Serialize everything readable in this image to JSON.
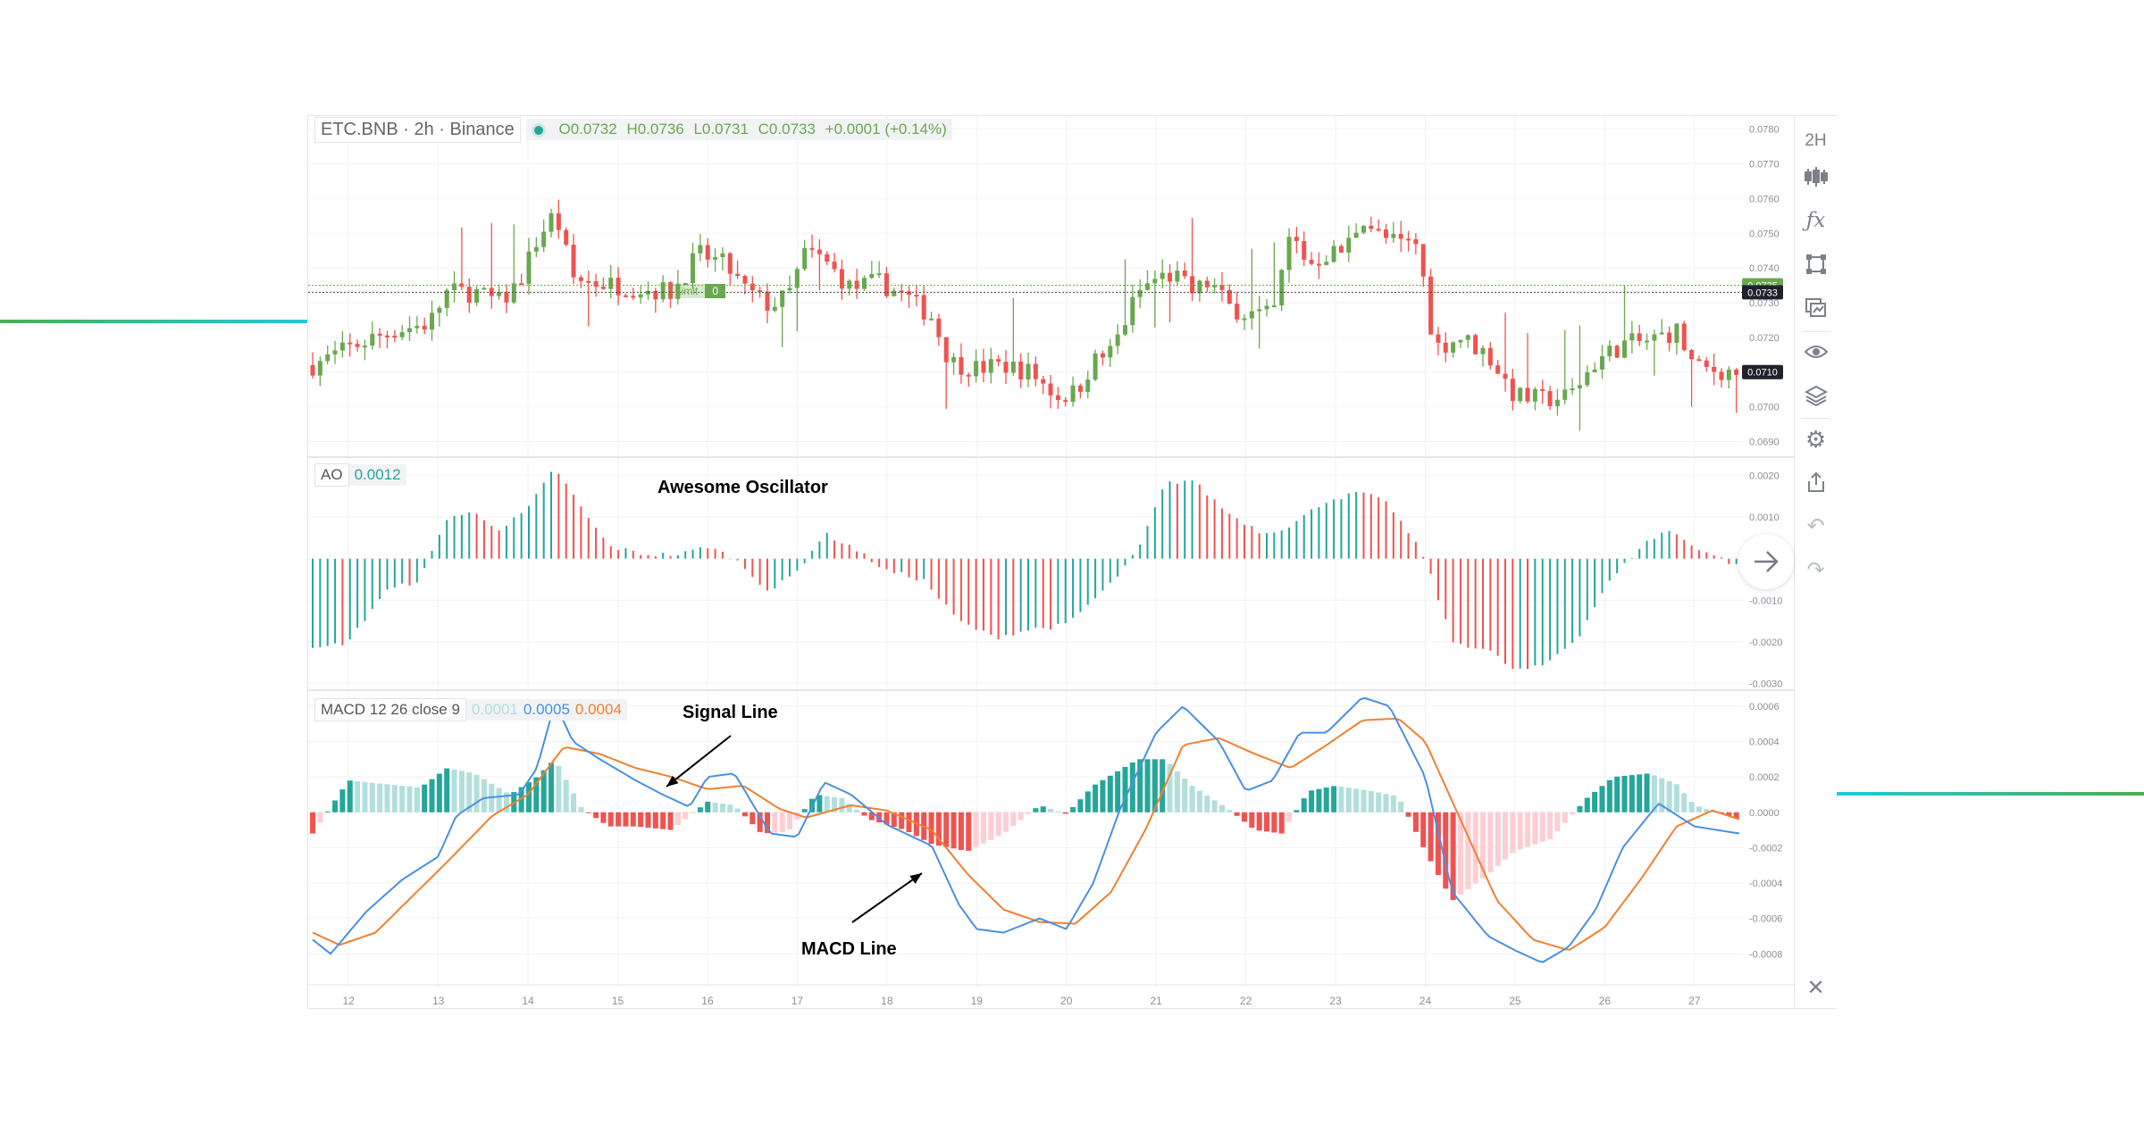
{
  "colors": {
    "up": "#6aa84f",
    "down": "#ef5350",
    "ao_up": "#26a69a",
    "macd_line": "#4a90e2",
    "signal_line": "#f08030",
    "hist_strong_up": "#26a69a",
    "hist_weak_up": "#b2dfdb",
    "hist_strong_down": "#ef5350",
    "hist_weak_down": "#ffcdd2",
    "deco": "#2dbfd0"
  },
  "header": {
    "symbol": "ETC.BNB · 2h · Binance",
    "open": "O0.0732",
    "high": "H0.0736",
    "low": "L0.0731",
    "close": "C0.0733",
    "change": "+0.0001 (+0.14%)"
  },
  "order_tag": {
    "label": "Limit",
    "qty": "0"
  },
  "ao_legend": {
    "name": "AO",
    "value": "0.0012"
  },
  "macd_legend": {
    "name": "MACD 12 26 close 9",
    "hist": "0.0001",
    "macd": "0.0005",
    "signal": "0.0004"
  },
  "annotations": {
    "ao_title": "Awesome Oscillator",
    "signal": "Signal Line",
    "macd": "MACD Line"
  },
  "price_badges": [
    "0.0735",
    "0.0733",
    "0.0710"
  ],
  "toolbar": [
    {
      "name": "interval-button",
      "label": "2H"
    },
    {
      "name": "candles-icon",
      "label": "candles"
    },
    {
      "name": "indicators-icon",
      "label": "fx"
    },
    {
      "name": "drawing-icon",
      "label": "draw"
    },
    {
      "name": "compare-icon",
      "label": "compare"
    },
    {
      "name": "eye-icon",
      "label": "hide"
    },
    {
      "name": "layers-icon",
      "label": "layers"
    },
    {
      "name": "settings-icon",
      "label": "settings"
    },
    {
      "name": "share-icon",
      "label": "share"
    },
    {
      "name": "undo-icon",
      "label": "undo"
    },
    {
      "name": "redo-icon",
      "label": "redo"
    },
    {
      "name": "close-icon",
      "label": "close"
    }
  ],
  "chart_data": [
    {
      "type": "candlestick",
      "title": "ETC.BNB · 2h · Binance",
      "y_ticks": [
        "0.0780",
        "0.0770",
        "0.0760",
        "0.0750",
        "0.0740",
        "0.0730",
        "0.0720",
        "0.0710",
        "0.0700",
        "0.0690"
      ],
      "ylim": [
        0.0686,
        0.0783
      ],
      "x_ticks": [
        "12",
        "13",
        "14",
        "15",
        "16",
        "17",
        "18",
        "19",
        "20",
        "21",
        "22",
        "23",
        "24",
        "25",
        "26",
        "27"
      ],
      "close_anchors": [
        [
          11.6,
          0.0712
        ],
        [
          12.1,
          0.0718
        ],
        [
          12.5,
          0.0722
        ],
        [
          12.9,
          0.0724
        ],
        [
          13.1,
          0.0733
        ],
        [
          13.4,
          0.0733
        ],
        [
          13.7,
          0.073
        ],
        [
          13.9,
          0.0736
        ],
        [
          14.1,
          0.0748
        ],
        [
          14.3,
          0.0756
        ],
        [
          14.5,
          0.0737
        ],
        [
          14.7,
          0.0736
        ],
        [
          15.0,
          0.0735
        ],
        [
          15.3,
          0.0734
        ],
        [
          15.6,
          0.0733
        ],
        [
          15.9,
          0.0744
        ],
        [
          16.2,
          0.0741
        ],
        [
          16.4,
          0.0734
        ],
        [
          16.7,
          0.0729
        ],
        [
          16.9,
          0.0732
        ],
        [
          17.1,
          0.0745
        ],
        [
          17.3,
          0.0742
        ],
        [
          17.6,
          0.0734
        ],
        [
          17.9,
          0.0736
        ],
        [
          18.2,
          0.0732
        ],
        [
          18.5,
          0.0726
        ],
        [
          18.7,
          0.0713
        ],
        [
          19.0,
          0.0711
        ],
        [
          19.3,
          0.0712
        ],
        [
          19.6,
          0.071
        ],
        [
          19.9,
          0.0703
        ],
        [
          20.1,
          0.0704
        ],
        [
          20.3,
          0.0713
        ],
        [
          20.5,
          0.0716
        ],
        [
          20.8,
          0.0733
        ],
        [
          21.0,
          0.0737
        ],
        [
          21.2,
          0.0738
        ],
        [
          21.4,
          0.0733
        ],
        [
          21.6,
          0.0736
        ],
        [
          21.8,
          0.0729
        ],
        [
          22.0,
          0.0727
        ],
        [
          22.3,
          0.0726
        ],
        [
          22.5,
          0.075
        ],
        [
          22.7,
          0.0741
        ],
        [
          22.9,
          0.0744
        ],
        [
          23.1,
          0.0745
        ],
        [
          23.3,
          0.0755
        ],
        [
          23.5,
          0.0749
        ],
        [
          23.7,
          0.0747
        ],
        [
          23.9,
          0.0747
        ],
        [
          24.0,
          0.0734
        ],
        [
          24.1,
          0.0717
        ],
        [
          24.4,
          0.072
        ],
        [
          24.7,
          0.0715
        ],
        [
          25.0,
          0.0703
        ],
        [
          25.3,
          0.0702
        ],
        [
          25.6,
          0.0703
        ],
        [
          25.9,
          0.0713
        ],
        [
          26.2,
          0.0718
        ],
        [
          26.5,
          0.0719
        ],
        [
          26.8,
          0.0722
        ],
        [
          27.0,
          0.0711
        ],
        [
          27.5,
          0.071
        ]
      ]
    },
    {
      "type": "bar",
      "title": "Awesome Oscillator",
      "y_ticks": [
        "0.0020",
        "0.0010",
        "-0.0010",
        "-0.0020",
        "-0.0030"
      ],
      "ylim": [
        -0.0031,
        0.0024
      ],
      "anchors": [
        [
          11.6,
          -0.0022
        ],
        [
          12.0,
          -0.002
        ],
        [
          12.4,
          -0.0008
        ],
        [
          12.8,
          -0.0005
        ],
        [
          13.1,
          0.001
        ],
        [
          13.4,
          0.0011
        ],
        [
          13.7,
          0.0007
        ],
        [
          14.0,
          0.0012
        ],
        [
          14.3,
          0.0022
        ],
        [
          14.6,
          0.0012
        ],
        [
          14.9,
          0.0003
        ],
        [
          15.3,
          0.0001
        ],
        [
          15.7,
          0.0001
        ],
        [
          16.0,
          0.0003
        ],
        [
          16.3,
          0.0
        ],
        [
          16.7,
          -0.0008
        ],
        [
          17.0,
          -0.0003
        ],
        [
          17.3,
          0.0006
        ],
        [
          17.6,
          0.0003
        ],
        [
          18.0,
          -0.0003
        ],
        [
          18.4,
          -0.0005
        ],
        [
          18.8,
          -0.0015
        ],
        [
          19.2,
          -0.0019
        ],
        [
          19.6,
          -0.0017
        ],
        [
          20.0,
          -0.0016
        ],
        [
          20.5,
          -0.0006
        ],
        [
          20.8,
          0.0002
        ],
        [
          21.1,
          0.0018
        ],
        [
          21.4,
          0.0019
        ],
        [
          21.8,
          0.0011
        ],
        [
          22.2,
          0.0006
        ],
        [
          22.5,
          0.0008
        ],
        [
          22.9,
          0.0014
        ],
        [
          23.3,
          0.0016
        ],
        [
          23.6,
          0.0013
        ],
        [
          24.0,
          0.0
        ],
        [
          24.3,
          -0.002
        ],
        [
          24.7,
          -0.0022
        ],
        [
          25.0,
          -0.0027
        ],
        [
          25.3,
          -0.0026
        ],
        [
          25.7,
          -0.0019
        ],
        [
          26.0,
          -0.0007
        ],
        [
          26.4,
          0.0003
        ],
        [
          26.7,
          0.0007
        ],
        [
          27.0,
          0.0003
        ],
        [
          27.5,
          -0.0002
        ]
      ]
    },
    {
      "type": "line",
      "title": "MACD 12 26 close 9",
      "y_ticks": [
        "0.0006",
        "0.0004",
        "0.0002",
        "0.0000",
        "-0.0002",
        "-0.0004",
        "-0.0006",
        "-0.0008"
      ],
      "ylim": [
        -0.00096,
        0.00068
      ],
      "series": [
        {
          "name": "MACD",
          "points": [
            [
              11.6,
              -0.00072
            ],
            [
              11.8,
              -0.0008
            ],
            [
              12.2,
              -0.00056
            ],
            [
              12.6,
              -0.00038
            ],
            [
              13.0,
              -0.00025
            ],
            [
              13.2,
              -2e-05
            ],
            [
              13.5,
              8e-05
            ],
            [
              13.9,
              0.0001
            ],
            [
              14.1,
              0.00025
            ],
            [
              14.3,
              0.00062
            ],
            [
              14.5,
              0.0004
            ],
            [
              14.8,
              0.0003
            ],
            [
              15.2,
              0.00018
            ],
            [
              15.5,
              0.0001
            ],
            [
              15.8,
              3e-05
            ],
            [
              16.0,
              0.0002
            ],
            [
              16.3,
              0.00022
            ],
            [
              16.7,
              -0.00012
            ],
            [
              17.0,
              -0.00014
            ],
            [
              17.3,
              0.00017
            ],
            [
              17.6,
              0.0001
            ],
            [
              18.0,
              -7e-05
            ],
            [
              18.5,
              -0.00019
            ],
            [
              18.8,
              -0.00052
            ],
            [
              19.0,
              -0.00066
            ],
            [
              19.3,
              -0.00068
            ],
            [
              19.7,
              -0.0006
            ],
            [
              20.0,
              -0.00066
            ],
            [
              20.3,
              -0.0004
            ],
            [
              20.6,
              2e-05
            ],
            [
              21.0,
              0.00045
            ],
            [
              21.3,
              0.0006
            ],
            [
              21.7,
              0.0004
            ],
            [
              22.0,
              0.00012
            ],
            [
              22.3,
              0.00018
            ],
            [
              22.6,
              0.00045
            ],
            [
              22.9,
              0.00045
            ],
            [
              23.3,
              0.00065
            ],
            [
              23.6,
              0.0006
            ],
            [
              24.0,
              0.0002
            ],
            [
              24.3,
              -0.00045
            ],
            [
              24.7,
              -0.0007
            ],
            [
              25.0,
              -0.00078
            ],
            [
              25.3,
              -0.00085
            ],
            [
              25.6,
              -0.00076
            ],
            [
              25.9,
              -0.00055
            ],
            [
              26.2,
              -0.0002
            ],
            [
              26.6,
              5e-05
            ],
            [
              27.0,
              -8e-05
            ],
            [
              27.5,
              -0.00012
            ]
          ]
        },
        {
          "name": "Signal",
          "points": [
            [
              11.6,
              -0.00068
            ],
            [
              11.9,
              -0.00075
            ],
            [
              12.3,
              -0.00068
            ],
            [
              12.7,
              -0.00048
            ],
            [
              13.1,
              -0.00028
            ],
            [
              13.6,
              -2e-05
            ],
            [
              14.0,
              0.0001
            ],
            [
              14.4,
              0.00037
            ],
            [
              14.8,
              0.00033
            ],
            [
              15.2,
              0.00025
            ],
            [
              15.6,
              0.0002
            ],
            [
              16.0,
              0.00013
            ],
            [
              16.4,
              0.00015
            ],
            [
              16.8,
              2e-05
            ],
            [
              17.1,
              -3e-05
            ],
            [
              17.6,
              4e-05
            ],
            [
              18.0,
              1e-05
            ],
            [
              18.5,
              -0.0001
            ],
            [
              18.9,
              -0.00035
            ],
            [
              19.3,
              -0.00055
            ],
            [
              19.7,
              -0.00062
            ],
            [
              20.1,
              -0.00063
            ],
            [
              20.5,
              -0.00045
            ],
            [
              20.9,
              -8e-05
            ],
            [
              21.3,
              0.00038
            ],
            [
              21.7,
              0.00042
            ],
            [
              22.1,
              0.00033
            ],
            [
              22.5,
              0.00025
            ],
            [
              22.9,
              0.00038
            ],
            [
              23.3,
              0.00052
            ],
            [
              23.7,
              0.00053
            ],
            [
              24.0,
              0.0004
            ],
            [
              24.4,
              -5e-05
            ],
            [
              24.8,
              -0.0005
            ],
            [
              25.2,
              -0.00072
            ],
            [
              25.6,
              -0.00078
            ],
            [
              26.0,
              -0.00065
            ],
            [
              26.4,
              -0.00038
            ],
            [
              26.8,
              -8e-05
            ],
            [
              27.2,
              1e-05
            ],
            [
              27.5,
              -4e-05
            ]
          ]
        },
        {
          "name": "Histogram",
          "points": [
            [
              11.6,
              -0.00012
            ],
            [
              12.0,
              0.00018
            ],
            [
              12.4,
              0.00016
            ],
            [
              12.8,
              0.00014
            ],
            [
              13.1,
              0.00025
            ],
            [
              13.4,
              0.00022
            ],
            [
              13.8,
              0.0001
            ],
            [
              14.1,
              0.0002
            ],
            [
              14.3,
              0.0003
            ],
            [
              14.6,
              2e-05
            ],
            [
              14.9,
              -8e-05
            ],
            [
              15.2,
              -8e-05
            ],
            [
              15.6,
              -0.0001
            ],
            [
              16.0,
              6e-05
            ],
            [
              16.3,
              4e-05
            ],
            [
              16.6,
              -0.00012
            ],
            [
              16.9,
              -0.00011
            ],
            [
              17.2,
              0.0001
            ],
            [
              17.5,
              8e-05
            ],
            [
              17.8,
              -4e-05
            ],
            [
              18.2,
              -0.0001
            ],
            [
              18.5,
              -0.00018
            ],
            [
              18.9,
              -0.00022
            ],
            [
              19.3,
              -0.00012
            ],
            [
              19.7,
              4e-05
            ],
            [
              20.0,
              -1e-05
            ],
            [
              20.3,
              0.00015
            ],
            [
              20.8,
              0.0003
            ],
            [
              21.1,
              0.0003
            ],
            [
              21.4,
              0.00015
            ],
            [
              21.8,
              2e-05
            ],
            [
              22.1,
              -0.0001
            ],
            [
              22.4,
              -0.00012
            ],
            [
              22.7,
              0.00012
            ],
            [
              23.0,
              0.00015
            ],
            [
              23.4,
              0.00012
            ],
            [
              23.7,
              9e-05
            ],
            [
              24.0,
              -0.00022
            ],
            [
              24.3,
              -0.0005
            ],
            [
              24.7,
              -0.00035
            ],
            [
              25.0,
              -0.00022
            ],
            [
              25.4,
              -0.00015
            ],
            [
              25.8,
              8e-05
            ],
            [
              26.1,
              0.0002
            ],
            [
              26.5,
              0.00022
            ],
            [
              26.8,
              0.00016
            ],
            [
              27.0,
              4e-05
            ],
            [
              27.5,
              -4e-05
            ]
          ]
        }
      ]
    }
  ]
}
